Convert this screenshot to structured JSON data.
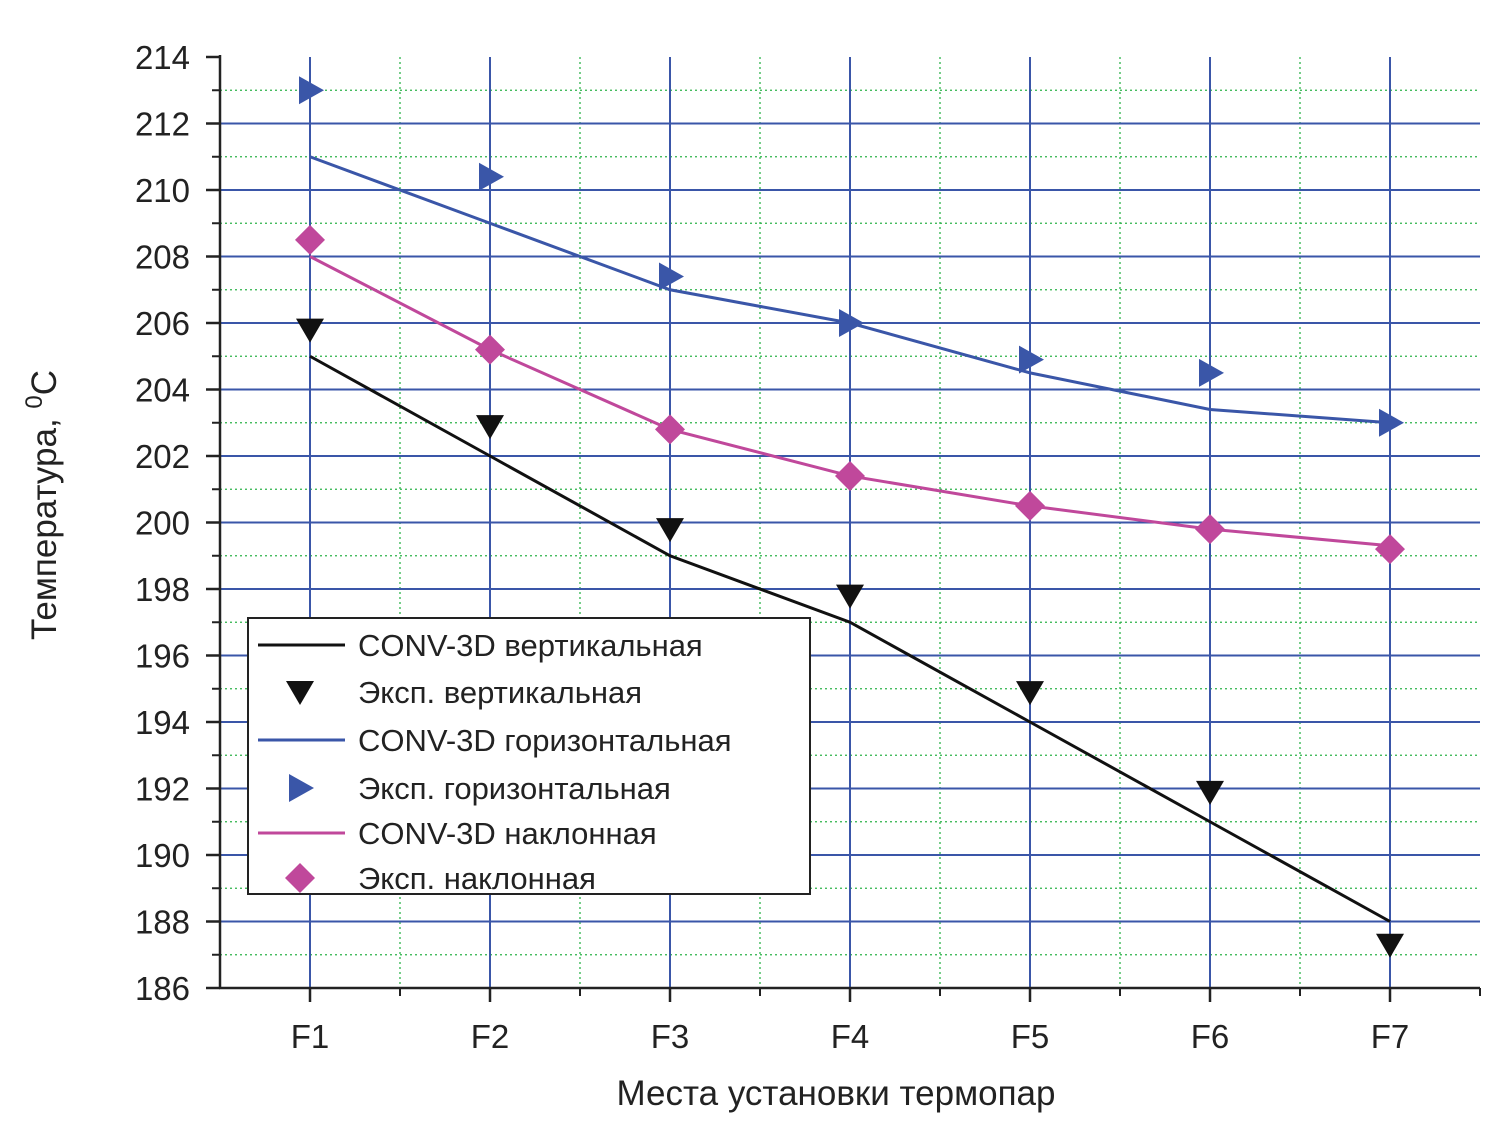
{
  "chart_data": {
    "type": "line",
    "xlabel": "Места установки термопар",
    "ylabel": "Температура, ",
    "ylabel_sup": "0",
    "ylabel_unit": "C",
    "categories": [
      "F1",
      "F2",
      "F3",
      "F4",
      "F5",
      "F6",
      "F7"
    ],
    "ylim": [
      186,
      214
    ],
    "yticks": [
      "186",
      "188",
      "190",
      "192",
      "194",
      "196",
      "198",
      "200",
      "202",
      "204",
      "206",
      "208",
      "210",
      "212",
      "214"
    ],
    "grid": true,
    "legend_position": "bottom-left",
    "series": [
      {
        "name": "CONV-3D вертикальная",
        "kind": "line",
        "color": "#111111",
        "values": [
          205.0,
          202.0,
          199.0,
          197.0,
          194.0,
          191.0,
          188.0
        ]
      },
      {
        "name": "Эксп. вертикальная",
        "kind": "marker",
        "marker": "triangle-down",
        "color": "#111111",
        "values": [
          205.8,
          202.9,
          199.8,
          197.8,
          194.9,
          191.9,
          187.3
        ]
      },
      {
        "name": "CONV-3D горизонтальная",
        "kind": "line",
        "color": "#3a56a8",
        "values": [
          211.0,
          209.0,
          207.0,
          206.0,
          204.5,
          203.4,
          203.0
        ]
      },
      {
        "name": "Эксп. горизонтальная",
        "kind": "marker",
        "marker": "triangle-right",
        "color": "#3a56a8",
        "values": [
          213.0,
          210.4,
          207.4,
          206.0,
          204.9,
          204.5,
          203.0
        ]
      },
      {
        "name": "CONV-3D наклонная",
        "kind": "line",
        "color": "#c0489b",
        "values": [
          208.0,
          205.2,
          202.8,
          201.4,
          200.5,
          199.8,
          199.3
        ]
      },
      {
        "name": "Эксп. наклонная",
        "kind": "marker",
        "marker": "diamond",
        "color": "#c0489b",
        "values": [
          208.5,
          205.2,
          202.8,
          201.4,
          200.5,
          199.8,
          199.2
        ]
      }
    ]
  }
}
